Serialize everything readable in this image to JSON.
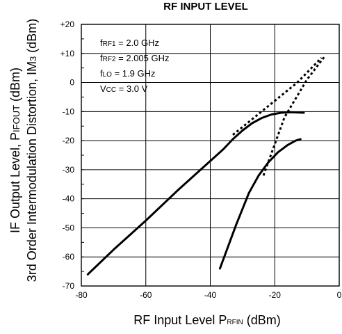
{
  "chart_data": {
    "type": "line",
    "title": "RF INPUT LEVEL",
    "xlabel": {
      "main": "RF Input Level P",
      "sub": "RFIN",
      "tail": " (dBm)"
    },
    "ylabel_line1": {
      "main": "IF Output Level, P",
      "sub": "IFOUT",
      "tail": " (dBm)"
    },
    "ylabel_line2": {
      "main": "3rd Order Intermodulation Distortion, IM",
      "sub": "3",
      "tail": " (dBm)"
    },
    "xlim": [
      -80,
      0
    ],
    "ylim": [
      -70,
      20
    ],
    "x_ticks": [
      -80,
      -60,
      -40,
      -20,
      0
    ],
    "x_tick_labels": [
      "-80",
      "-60",
      "-40",
      "-20",
      "0"
    ],
    "y_ticks": [
      20,
      10,
      0,
      -10,
      -20,
      -30,
      -40,
      -50,
      -60,
      -70
    ],
    "y_tick_labels": [
      "+20",
      "+10",
      "0",
      "-10",
      "-20",
      "-30",
      "-40",
      "-50",
      "-60",
      "-70"
    ],
    "grid": true,
    "conditions": [
      {
        "prefix": "f",
        "sub": "RF1",
        "value": " = 2.0 GHz"
      },
      {
        "prefix": "f",
        "sub": "RF2",
        "value": " = 2.005 GHz"
      },
      {
        "prefix": "f",
        "sub": "LO",
        "value": " = 1.9 GHz"
      },
      {
        "prefix": "V",
        "sub": "CC",
        "value": " = 3.0 V"
      }
    ],
    "series": [
      {
        "style": "solid",
        "x": [
          -78,
          -70,
          -60,
          -50,
          -40,
          -36,
          -33,
          -30,
          -27,
          -24,
          -21,
          -18,
          -15,
          -11
        ],
        "y": [
          -66,
          -57.5,
          -47.5,
          -37,
          -27,
          -23,
          -19.5,
          -16.5,
          -14,
          -12.2,
          -11,
          -10.4,
          -10.2,
          -10.4
        ]
      },
      {
        "style": "solid",
        "x": [
          -37,
          -32,
          -28,
          -25,
          -22,
          -19,
          -16,
          -13.5,
          -12
        ],
        "y": [
          -64,
          -49,
          -38,
          -32,
          -27.5,
          -24,
          -21.5,
          -20,
          -19.5
        ]
      },
      {
        "style": "dotted",
        "x": [
          -33,
          -23,
          -13,
          -5.5
        ],
        "y": [
          -18,
          -9,
          0,
          8.5
        ]
      },
      {
        "style": "dotted",
        "x": [
          -23.5,
          -17,
          -10,
          -4.5
        ],
        "y": [
          -32,
          -12,
          1,
          9
        ]
      }
    ]
  }
}
